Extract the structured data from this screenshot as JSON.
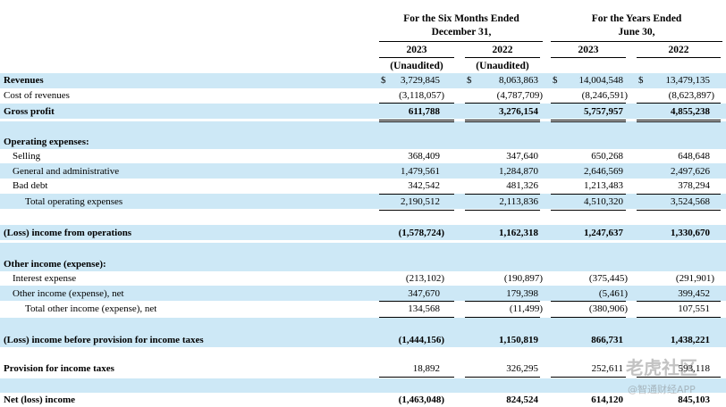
{
  "header": {
    "six_months_line1": "For the Six Months Ended",
    "six_months_line2": "December 31,",
    "years_line1": "For the Years Ended",
    "years_line2": "June 30,",
    "years": [
      "2023",
      "2022",
      "2023",
      "2022"
    ],
    "unaudited": [
      "(Unaudited)",
      "(Unaudited)"
    ]
  },
  "currency_symbol": "$",
  "rows": {
    "revenues": {
      "label": "Revenues",
      "values": [
        "3,729,845",
        "8,063,863",
        "14,004,548",
        "13,479,135"
      ]
    },
    "cost_of_revenues": {
      "label": "Cost of revenues",
      "values": [
        "(3,118,057)",
        "(4,787,709)",
        "(8,246,591)",
        "(8,623,897)"
      ]
    },
    "gross_profit": {
      "label": "Gross profit",
      "values": [
        "611,788",
        "3,276,154",
        "5,757,957",
        "4,855,238"
      ]
    },
    "operating_expenses": {
      "label": "Operating expenses:"
    },
    "selling": {
      "label": "Selling",
      "values": [
        "368,409",
        "347,640",
        "650,268",
        "648,648"
      ]
    },
    "general_admin": {
      "label": "General and administrative",
      "values": [
        "1,479,561",
        "1,284,870",
        "2,646,569",
        "2,497,626"
      ]
    },
    "bad_debt": {
      "label": "Bad debt",
      "values": [
        "342,542",
        "481,326",
        "1,213,483",
        "378,294"
      ]
    },
    "total_operating": {
      "label": "Total operating expenses",
      "values": [
        "2,190,512",
        "2,113,836",
        "4,510,320",
        "3,524,568"
      ]
    },
    "loss_income_operations": {
      "label": "(Loss) income from operations",
      "values": [
        "(1,578,724)",
        "1,162,318",
        "1,247,637",
        "1,330,670"
      ]
    },
    "other_income": {
      "label": "Other income (expense):"
    },
    "interest_expense": {
      "label": "Interest expense",
      "values": [
        "(213,102)",
        "(190,897)",
        "(375,445)",
        "(291,901)"
      ]
    },
    "other_income_net": {
      "label": "Other income (expense), net",
      "values": [
        "347,670",
        "179,398",
        "(5,461)",
        "399,452"
      ]
    },
    "total_other": {
      "label": "Total other income (expense), net",
      "values": [
        "134,568",
        "(11,499)",
        "(380,906)",
        "107,551"
      ]
    },
    "before_provision": {
      "label": "(Loss) income before provision for income taxes",
      "values": [
        "(1,444,156)",
        "1,150,819",
        "866,731",
        "1,438,221"
      ]
    },
    "provision": {
      "label": "Provision for income taxes",
      "values": [
        "18,892",
        "326,295",
        "252,611",
        "593,118"
      ]
    },
    "net_income": {
      "label": "Net (loss) income",
      "values": [
        "(1,463,048)",
        "824,524",
        "614,120",
        "845,103"
      ]
    }
  },
  "watermark": {
    "line1": "老虎社区",
    "line2": "@智通财经APP"
  }
}
